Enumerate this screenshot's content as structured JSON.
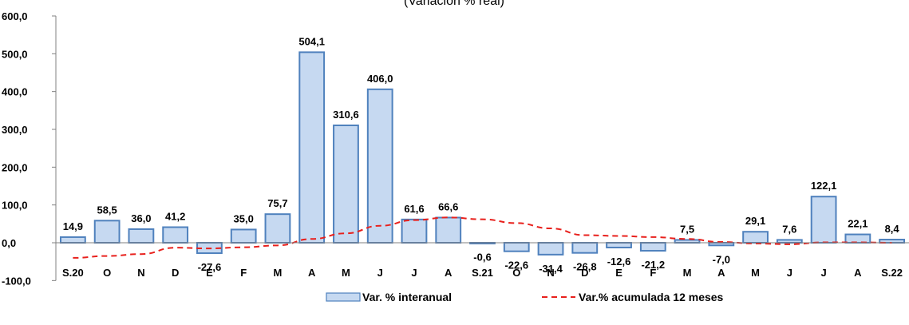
{
  "chart_data": {
    "type": "bar",
    "title": "(Variación % real)",
    "categories": [
      "S.20",
      "O",
      "N",
      "D",
      "E",
      "F",
      "M",
      "A",
      "M",
      "J",
      "J",
      "A",
      "S.21",
      "O",
      "N",
      "D",
      "E",
      "F",
      "M",
      "A",
      "M",
      "J",
      "J",
      "A",
      "S.22"
    ],
    "series": [
      {
        "name": "Var. % interanual",
        "type": "bar",
        "color": "#c6d9f1",
        "border_color": "#4f81bd",
        "values": [
          14.9,
          58.5,
          36.0,
          41.2,
          -27.6,
          35.0,
          75.7,
          504.1,
          310.6,
          406.0,
          61.6,
          66.6,
          -0.6,
          -22.6,
          -31.4,
          -26.8,
          -12.6,
          -21.2,
          7.5,
          -7.0,
          29.1,
          7.6,
          122.1,
          22.1,
          8.4
        ],
        "labels": [
          "14,9",
          "58,5",
          "36,0",
          "41,2",
          "-27,6",
          "35,0",
          "75,7",
          "504,1",
          "310,6",
          "406,0",
          "61,6",
          "66,6",
          "-0,6",
          "-22,6",
          "-31,4",
          "-26,8",
          "-12,6",
          "-21,2",
          "7,5",
          "-7,0",
          "29,1",
          "7,6",
          "122,1",
          "22,1",
          "8,4"
        ]
      },
      {
        "name": "Var.% acumulada 12 meses",
        "type": "line",
        "style": "dashed",
        "color": "#e8201c",
        "values": [
          -40,
          -35,
          -30,
          -13,
          -15,
          -12,
          -7,
          10,
          25,
          45,
          60,
          67,
          62,
          52,
          38,
          20,
          18,
          15,
          10,
          2,
          -2,
          -4,
          1,
          1,
          0
        ]
      }
    ],
    "ylim": [
      -100,
      600
    ],
    "yticks": [
      "-100,0",
      "0,0",
      "100,0",
      "200,0",
      "300,0",
      "400,0",
      "500,0",
      "600,0"
    ],
    "ytick_values": [
      -100,
      0,
      100,
      200,
      300,
      400,
      500,
      600
    ],
    "grid": false,
    "legend_position": "bottom"
  }
}
